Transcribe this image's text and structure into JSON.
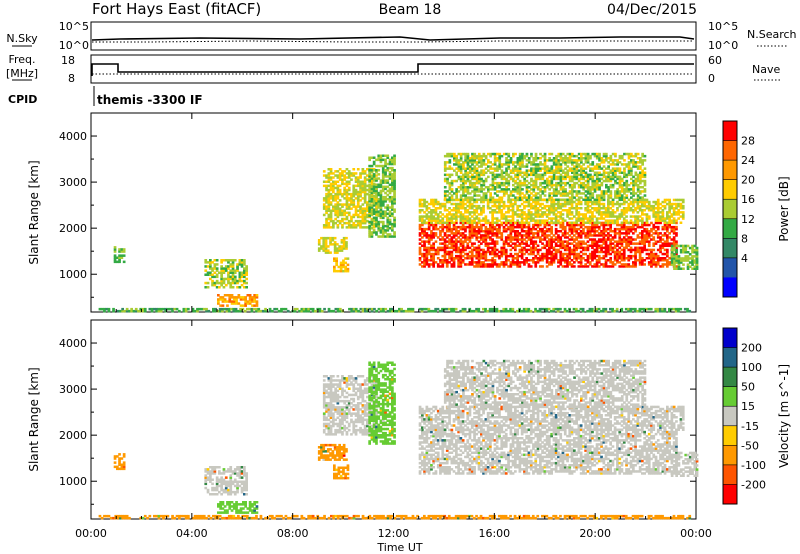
{
  "header": {
    "station": "Fort Hays East (fitACF)",
    "beam": "Beam 18",
    "date": "04/Dec/2015"
  },
  "top_panels": {
    "nsky_label": "N.Sky",
    "nsky_ticks_left": [
      "10^5",
      "10^0"
    ],
    "nsearch_label": "N.Search",
    "nsearch_ticks_right": [
      "10^5",
      "10^0"
    ],
    "freq_label": "Freq.",
    "freq_unit": "[MHz]",
    "freq_ticks_left": [
      "18",
      "8"
    ],
    "nave_label": "Nave",
    "nave_ticks_right": [
      "60",
      "0"
    ],
    "cpid_label": "CPID",
    "cpid_text": "themis -3300 IF"
  },
  "chart_data": [
    {
      "type": "heatmap",
      "name": "power",
      "ylabel": "Slant Range [km]",
      "xlabel": "",
      "x_ticks": [
        "00:00",
        "04:00",
        "08:00",
        "12:00",
        "16:00",
        "20:00",
        "00:00"
      ],
      "y_ticks": [
        "1000",
        "2000",
        "3000",
        "4000"
      ],
      "xlim_hours": [
        0,
        24
      ],
      "ylim_km": [
        180,
        4500
      ],
      "colorbar": {
        "label": "Power [dB]",
        "ticks": [
          "28",
          "24",
          "20",
          "16",
          "12",
          "8",
          "4"
        ],
        "colors": [
          "#ff0000",
          "#ff6600",
          "#ff9900",
          "#ffcc00",
          "#aacc33",
          "#33aa44",
          "#338866",
          "#2255aa",
          "#0000ff"
        ]
      },
      "regions": [
        {
          "t0": 0.3,
          "t1": 23.7,
          "r0": 180,
          "r1": 260,
          "v": 8
        },
        {
          "t0": 0.9,
          "t1": 1.3,
          "r0": 1250,
          "r1": 1600,
          "v": 10
        },
        {
          "t0": 4.5,
          "t1": 6.2,
          "r0": 700,
          "r1": 1300,
          "v": 12
        },
        {
          "t0": 5.0,
          "t1": 6.6,
          "r0": 300,
          "r1": 550,
          "v": 20
        },
        {
          "t0": 9.0,
          "t1": 10.1,
          "r0": 1450,
          "r1": 1800,
          "v": 14
        },
        {
          "t0": 9.6,
          "t1": 10.2,
          "r0": 1050,
          "r1": 1350,
          "v": 16
        },
        {
          "t0": 9.2,
          "t1": 11.3,
          "r0": 2000,
          "r1": 3300,
          "v": 14
        },
        {
          "t0": 11.0,
          "t1": 12.0,
          "r0": 1800,
          "r1": 3600,
          "v": 10
        },
        {
          "t0": 13.0,
          "t1": 23.2,
          "r0": 1150,
          "r1": 2100,
          "v": 26
        },
        {
          "t0": 13.0,
          "t1": 23.5,
          "r0": 2100,
          "r1": 2600,
          "v": 14
        },
        {
          "t0": 14.0,
          "t1": 22.0,
          "r0": 2600,
          "r1": 3600,
          "v": 12
        },
        {
          "t0": 23.0,
          "t1": 24.0,
          "r0": 1100,
          "r1": 1600,
          "v": 10
        }
      ]
    },
    {
      "type": "heatmap",
      "name": "velocity",
      "ylabel": "Slant Range [km]",
      "xlabel": "Time UT",
      "x_ticks": [
        "00:00",
        "04:00",
        "08:00",
        "12:00",
        "16:00",
        "20:00",
        "00:00"
      ],
      "y_ticks": [
        "1000",
        "2000",
        "3000",
        "4000"
      ],
      "xlim_hours": [
        0,
        24
      ],
      "ylim_km": [
        180,
        4500
      ],
      "colorbar": {
        "label": "Velocity [m s^-1]",
        "ticks": [
          "200",
          "100",
          "50",
          "15",
          "-15",
          "-50",
          "-100",
          "-200"
        ],
        "colors": [
          "#0000cc",
          "#226688",
          "#338844",
          "#66cc33",
          "#c8c8c0",
          "#ffcc00",
          "#ff9900",
          "#ff5500",
          "#ff0000"
        ]
      },
      "regions": [
        {
          "t0": 0.3,
          "t1": 23.7,
          "r0": 180,
          "r1": 260,
          "v": -60
        },
        {
          "t0": 0.9,
          "t1": 1.3,
          "r0": 1250,
          "r1": 1600,
          "v": -60
        },
        {
          "t0": 4.5,
          "t1": 6.2,
          "r0": 700,
          "r1": 1300,
          "v": 0
        },
        {
          "t0": 5.0,
          "t1": 6.6,
          "r0": 300,
          "r1": 550,
          "v": 30
        },
        {
          "t0": 9.0,
          "t1": 10.1,
          "r0": 1450,
          "r1": 1800,
          "v": -60
        },
        {
          "t0": 9.6,
          "t1": 10.2,
          "r0": 1050,
          "r1": 1350,
          "v": -60
        },
        {
          "t0": 9.2,
          "t1": 11.3,
          "r0": 2000,
          "r1": 3300,
          "v": 0
        },
        {
          "t0": 11.0,
          "t1": 12.0,
          "r0": 1800,
          "r1": 3600,
          "v": 30
        },
        {
          "t0": 13.0,
          "t1": 23.2,
          "r0": 1150,
          "r1": 2100,
          "v": 0
        },
        {
          "t0": 13.0,
          "t1": 23.5,
          "r0": 2100,
          "r1": 2600,
          "v": 0
        },
        {
          "t0": 14.0,
          "t1": 22.0,
          "r0": 2600,
          "r1": 3600,
          "v": 0
        },
        {
          "t0": 23.0,
          "t1": 24.0,
          "r0": 1100,
          "r1": 1600,
          "v": 0
        }
      ]
    }
  ]
}
